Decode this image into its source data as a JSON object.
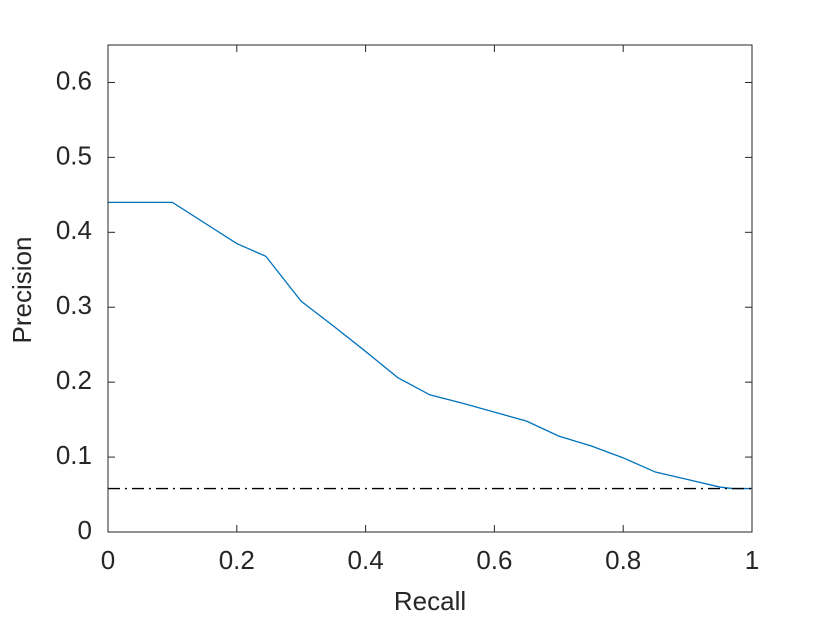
{
  "chart_data": {
    "type": "line",
    "xlabel": "Recall",
    "ylabel": "Precision",
    "xlim": [
      0,
      1
    ],
    "ylim": [
      0,
      0.65
    ],
    "xticks": [
      0,
      0.2,
      0.4,
      0.6,
      0.8,
      1
    ],
    "yticks": [
      0,
      0.1,
      0.2,
      0.3,
      0.4,
      0.5,
      0.6
    ],
    "box": true,
    "series": [
      {
        "color": "#0072bd",
        "line_style": "solid",
        "x": [
          0,
          0.1,
          0.2,
          0.245,
          0.3,
          0.35,
          0.4,
          0.45,
          0.5,
          0.55,
          0.6,
          0.65,
          0.7,
          0.75,
          0.8,
          0.85,
          0.9,
          0.95,
          0.97,
          1
        ],
        "values": [
          0.44,
          0.44,
          0.385,
          0.368,
          0.308,
          0.275,
          0.241,
          0.206,
          0.183,
          0.172,
          0.16,
          0.148,
          0.128,
          0.115,
          0.099,
          0.08,
          0.07,
          0.06,
          0.058,
          0.058
        ]
      },
      {
        "color": "#000000",
        "line_style": "dash-dot",
        "x": [
          0,
          1
        ],
        "values": [
          0.058,
          0.058
        ]
      }
    ]
  }
}
